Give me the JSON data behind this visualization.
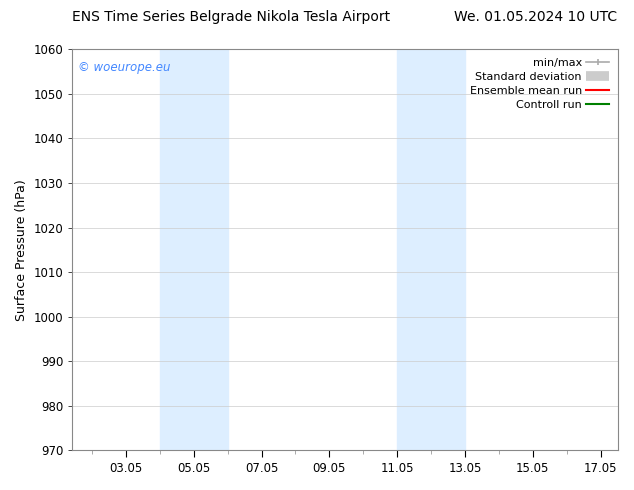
{
  "title_left": "ENS Time Series Belgrade Nikola Tesla Airport",
  "title_right": "We. 01.05.2024 10 UTC",
  "ylabel": "Surface Pressure (hPa)",
  "ylim": [
    970,
    1060
  ],
  "yticks": [
    970,
    980,
    990,
    1000,
    1010,
    1020,
    1030,
    1040,
    1050,
    1060
  ],
  "xtick_labels": [
    "03.05",
    "05.05",
    "07.05",
    "09.05",
    "11.05",
    "13.05",
    "15.05",
    "17.05"
  ],
  "shaded_color": "#ddeeff",
  "watermark_text": "© woeurope.eu",
  "watermark_color": "#4488ff",
  "background_color": "#ffffff",
  "grid_color": "#cccccc",
  "title_fontsize": 10,
  "axis_label_fontsize": 9,
  "tick_fontsize": 8.5,
  "legend_fontsize": 8
}
